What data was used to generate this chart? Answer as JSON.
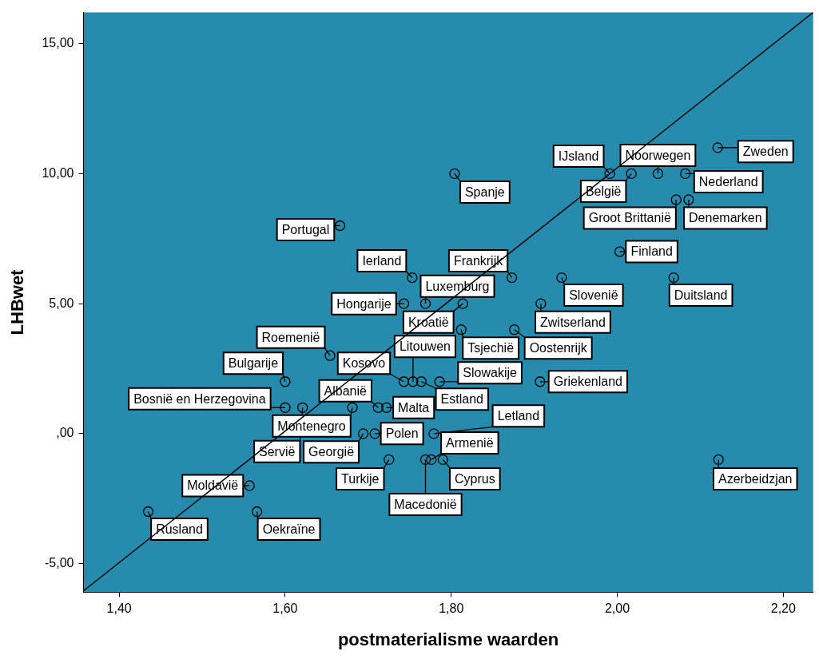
{
  "chart_data": {
    "type": "scatter",
    "xlabel": "postmaterialisme waarden",
    "ylabel": "LHBwet",
    "xlim": [
      1.357,
      2.236
    ],
    "ylim": [
      -6.1,
      16.2
    ],
    "xticks": [
      {
        "value": 1.4,
        "label": "1,40"
      },
      {
        "value": 1.6,
        "label": "1,60"
      },
      {
        "value": 1.8,
        "label": "1,80"
      },
      {
        "value": 2.0,
        "label": "2,00"
      },
      {
        "value": 2.2,
        "label": "2,20"
      }
    ],
    "yticks": [
      {
        "value": -5,
        "label": "-5,00"
      },
      {
        "value": 0,
        "label": ",00"
      },
      {
        "value": 5,
        "label": "5,00"
      },
      {
        "value": 10,
        "label": "10,00"
      },
      {
        "value": 15,
        "label": "15,00"
      }
    ],
    "grid": false,
    "legend": false,
    "marker": "circle",
    "series": [
      {
        "type": "scatter",
        "color": "#000000",
        "x": [
          2.121,
          1.991,
          2.017,
          2.049,
          2.082,
          1.804,
          2.071,
          2.086,
          1.666,
          2.003,
          1.753,
          1.873,
          1.933,
          2.068,
          1.743,
          1.769,
          1.814,
          1.908,
          1.812,
          1.876,
          1.654,
          1.6,
          1.743,
          1.754,
          1.764,
          1.786,
          1.907,
          1.6,
          1.621,
          1.681,
          1.712,
          1.722,
          1.694,
          1.708,
          1.779,
          1.725,
          1.769,
          1.776,
          1.79,
          2.122,
          1.557,
          1.435,
          1.566
        ],
        "values": [
          11,
          10,
          10,
          10,
          10,
          10,
          9,
          9,
          8,
          7,
          6,
          6,
          6,
          6,
          5,
          5,
          5,
          5,
          4,
          4,
          3,
          2,
          2,
          2,
          2,
          2,
          2,
          1,
          1,
          1,
          1,
          1,
          0,
          0,
          0,
          -1,
          -1,
          -1,
          -1,
          -1,
          -2,
          -3,
          -3
        ]
      },
      {
        "type": "line",
        "color": "#000000",
        "marker": "none",
        "x": [
          1.357,
          2.236
        ],
        "values": [
          -6.05,
          16.2
        ]
      }
    ],
    "annotations": [
      {
        "text": "Zweden",
        "x": 2.121,
        "y": 11
      },
      {
        "text": "IJsland",
        "x": 1.991,
        "y": 10
      },
      {
        "text": "België",
        "x": 2.017,
        "y": 10
      },
      {
        "text": "Noorwegen",
        "x": 2.049,
        "y": 10
      },
      {
        "text": "Nederland",
        "x": 2.082,
        "y": 10
      },
      {
        "text": "Spanje",
        "x": 1.804,
        "y": 10
      },
      {
        "text": "Groot Brittanië",
        "x": 2.071,
        "y": 9
      },
      {
        "text": "Denemarken",
        "x": 2.086,
        "y": 9
      },
      {
        "text": "Portugal",
        "x": 1.666,
        "y": 8
      },
      {
        "text": "Finland",
        "x": 2.003,
        "y": 7
      },
      {
        "text": "Ierland",
        "x": 1.753,
        "y": 6
      },
      {
        "text": "Frankrijk",
        "x": 1.873,
        "y": 6
      },
      {
        "text": "Slovenië",
        "x": 1.933,
        "y": 6
      },
      {
        "text": "Duitsland",
        "x": 2.068,
        "y": 6
      },
      {
        "text": "Hongarije",
        "x": 1.743,
        "y": 5
      },
      {
        "text": "Luxemburg",
        "x": 1.769,
        "y": 5
      },
      {
        "text": "Kroatië",
        "x": 1.814,
        "y": 5
      },
      {
        "text": "Zwitserland",
        "x": 1.908,
        "y": 5
      },
      {
        "text": "Tsjechië",
        "x": 1.812,
        "y": 4
      },
      {
        "text": "Oostenrijk",
        "x": 1.876,
        "y": 4
      },
      {
        "text": "Roemenië",
        "x": 1.654,
        "y": 3
      },
      {
        "text": "Bulgarije",
        "x": 1.6,
        "y": 2
      },
      {
        "text": "Kosovo",
        "x": 1.743,
        "y": 2
      },
      {
        "text": "Litouwen",
        "x": 1.754,
        "y": 2
      },
      {
        "text": "Estland",
        "x": 1.764,
        "y": 2
      },
      {
        "text": "Slowakije",
        "x": 1.786,
        "y": 2
      },
      {
        "text": "Griekenland",
        "x": 1.907,
        "y": 2
      },
      {
        "text": "Bosnië en Herzegovina",
        "x": 1.6,
        "y": 1
      },
      {
        "text": "Servië",
        "x": 1.621,
        "y": 1
      },
      {
        "text": "Albanië",
        "x": 1.712,
        "y": 1
      },
      {
        "text": "Montenegro",
        "x": 1.681,
        "y": 1
      },
      {
        "text": "Malta",
        "x": 1.722,
        "y": 1
      },
      {
        "text": "Georgië",
        "x": 1.694,
        "y": 0
      },
      {
        "text": "Polen",
        "x": 1.708,
        "y": 0
      },
      {
        "text": "Letland",
        "x": 1.779,
        "y": 0
      },
      {
        "text": "Turkije",
        "x": 1.725,
        "y": -1
      },
      {
        "text": "Macedonië",
        "x": 1.769,
        "y": -1
      },
      {
        "text": "Armenië",
        "x": 1.776,
        "y": -1
      },
      {
        "text": "Cyprus",
        "x": 1.79,
        "y": -1
      },
      {
        "text": "Azerbeidzjan",
        "x": 2.122,
        "y": -1
      },
      {
        "text": "Moldavië",
        "x": 1.557,
        "y": -2
      },
      {
        "text": "Rusland",
        "x": 1.435,
        "y": -3
      },
      {
        "text": "Oekraïne",
        "x": 1.566,
        "y": -3
      }
    ]
  }
}
